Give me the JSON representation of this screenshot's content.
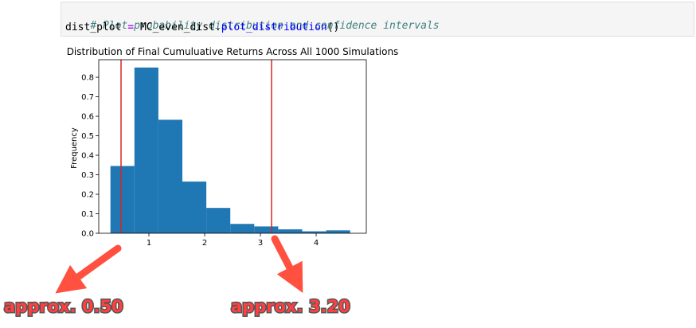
{
  "code_cell": {
    "comment": "# Plot probability distribution and confidence intervals",
    "line2": {
      "var": "dist_plot",
      "op": "=",
      "obj": "MC_even_dist.",
      "method": "plot_distribution",
      "parens": "()"
    }
  },
  "chart_data": {
    "type": "bar",
    "title": "Distribution of Final Cumuluative Returns Across All 1000 Simulations",
    "xlabel": "",
    "ylabel": "Frequency",
    "xlim": [
      0.1,
      4.9
    ],
    "ylim": [
      0,
      0.89
    ],
    "xticks": [
      1,
      2,
      3,
      4
    ],
    "yticks": [
      0.0,
      0.1,
      0.2,
      0.3,
      0.4,
      0.5,
      0.6,
      0.7,
      0.8
    ],
    "bar_color": "#1f77b4",
    "bins": [
      {
        "x0": 0.31,
        "x1": 0.74,
        "value": 0.345
      },
      {
        "x0": 0.74,
        "x1": 1.17,
        "value": 0.85
      },
      {
        "x0": 1.17,
        "x1": 1.6,
        "value": 0.582
      },
      {
        "x0": 1.6,
        "x1": 2.03,
        "value": 0.265
      },
      {
        "x0": 2.03,
        "x1": 2.46,
        "value": 0.13
      },
      {
        "x0": 2.46,
        "x1": 2.89,
        "value": 0.048
      },
      {
        "x0": 2.89,
        "x1": 3.32,
        "value": 0.035
      },
      {
        "x0": 3.32,
        "x1": 3.75,
        "value": 0.02
      },
      {
        "x0": 3.75,
        "x1": 4.18,
        "value": 0.01
      },
      {
        "x0": 4.18,
        "x1": 4.61,
        "value": 0.015
      }
    ],
    "vlines": [
      {
        "x": 0.5,
        "color": "#d62728"
      },
      {
        "x": 3.2,
        "color": "#d62728"
      }
    ],
    "grid": false,
    "legend": "none"
  },
  "annotations": [
    {
      "label": "approx. 0.50",
      "color": "#ff4040"
    },
    {
      "label": "approx. 3.20",
      "color": "#ff4040"
    }
  ]
}
